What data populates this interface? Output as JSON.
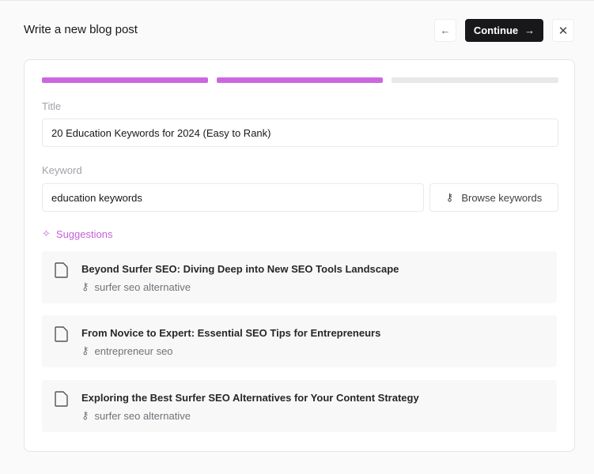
{
  "header": {
    "title": "Write a new blog post",
    "continue_label": "Continue",
    "back_icon": "arrow-left-icon",
    "close_icon": "close-icon"
  },
  "progress": {
    "steps_total": 3,
    "steps_completed": 2,
    "accent": "#cc66e0"
  },
  "form": {
    "title_label": "Title",
    "title_value": "20 Education Keywords for 2024 (Easy to Rank)",
    "keyword_label": "Keyword",
    "keyword_value": "education keywords",
    "browse_label": "Browse keywords"
  },
  "suggestions": {
    "label": "Suggestions",
    "items": [
      {
        "title": "Beyond Surfer SEO: Diving Deep into New SEO Tools Landscape",
        "keyword": "surfer seo alternative"
      },
      {
        "title": "From Novice to Expert: Essential SEO Tips for Entrepreneurs",
        "keyword": "entrepreneur seo"
      },
      {
        "title": "Exploring the Best Surfer SEO Alternatives for Your Content Strategy",
        "keyword": "surfer seo alternative"
      }
    ]
  }
}
